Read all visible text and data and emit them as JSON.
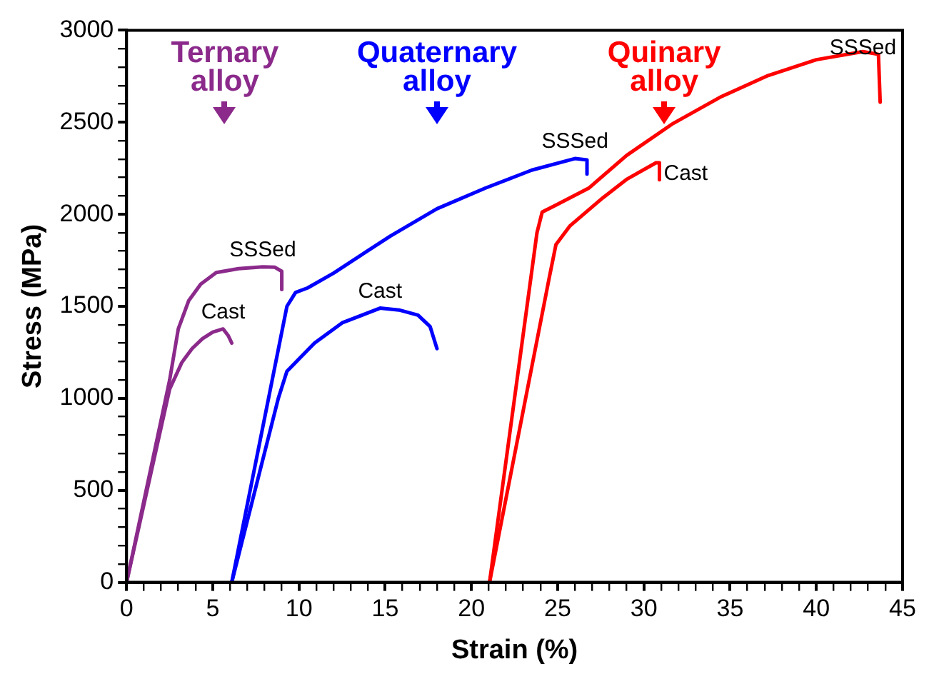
{
  "chart_data": {
    "type": "line",
    "xlabel": "Strain (%)",
    "ylabel": "Stress (MPa)",
    "xlim": [
      0,
      45
    ],
    "ylim": [
      0,
      3000
    ],
    "xticks": [
      0,
      {
        "value": 1,
        "label": null
      },
      {
        "value": 2,
        "label": null
      },
      {
        "value": 3,
        "label": null
      },
      {
        "value": 4,
        "label": null
      },
      5,
      {
        "value": 6,
        "label": null
      },
      {
        "value": 7,
        "label": null
      },
      {
        "value": 8,
        "label": null
      },
      {
        "value": 9,
        "label": null
      },
      10,
      {
        "value": 11,
        "label": null
      },
      {
        "value": 12,
        "label": null
      },
      {
        "value": 13,
        "label": null
      },
      {
        "value": 14,
        "label": null
      },
      15,
      {
        "value": 16,
        "label": null
      },
      {
        "value": 17,
        "label": null
      },
      {
        "value": 18,
        "label": null
      },
      {
        "value": 19,
        "label": null
      },
      20,
      {
        "value": 21,
        "label": null
      },
      {
        "value": 22,
        "label": null
      },
      {
        "value": 23,
        "label": null
      },
      {
        "value": 24,
        "label": null
      },
      25,
      {
        "value": 26,
        "label": null
      },
      {
        "value": 27,
        "label": null
      },
      {
        "value": 28,
        "label": null
      },
      {
        "value": 29,
        "label": null
      },
      30,
      {
        "value": 31,
        "label": null
      },
      {
        "value": 32,
        "label": null
      },
      {
        "value": 33,
        "label": null
      },
      {
        "value": 34,
        "label": null
      },
      35,
      {
        "value": 36,
        "label": null
      },
      {
        "value": 37,
        "label": null
      },
      {
        "value": 38,
        "label": null
      },
      {
        "value": 39,
        "label": null
      },
      40,
      {
        "value": 41,
        "label": null
      },
      {
        "value": 42,
        "label": null
      },
      {
        "value": 43,
        "label": null
      },
      {
        "value": 44,
        "label": null
      },
      45
    ],
    "yticks": [
      0,
      {
        "value": 100,
        "label": null
      },
      {
        "value": 200,
        "label": null
      },
      {
        "value": 300,
        "label": null
      },
      {
        "value": 400,
        "label": null
      },
      500,
      {
        "value": 600,
        "label": null
      },
      {
        "value": 700,
        "label": null
      },
      {
        "value": 800,
        "label": null
      },
      {
        "value": 900,
        "label": null
      },
      1000,
      {
        "value": 1100,
        "label": null
      },
      {
        "value": 1200,
        "label": null
      },
      {
        "value": 1300,
        "label": null
      },
      {
        "value": 1400,
        "label": null
      },
      1500,
      {
        "value": 1600,
        "label": null
      },
      {
        "value": 1700,
        "label": null
      },
      {
        "value": 1800,
        "label": null
      },
      {
        "value": 1900,
        "label": null
      },
      2000,
      {
        "value": 2100,
        "label": null
      },
      {
        "value": 2200,
        "label": null
      },
      {
        "value": 2300,
        "label": null
      },
      {
        "value": 2400,
        "label": null
      },
      2500,
      {
        "value": 2600,
        "label": null
      },
      {
        "value": 2700,
        "label": null
      },
      {
        "value": 2800,
        "label": null
      },
      {
        "value": 2900,
        "label": null
      },
      3000
    ],
    "grid": false,
    "legend": false,
    "marker": "none",
    "line_style": "solid",
    "series": [
      {
        "name": "SSSed",
        "color": "#8b2a8b",
        "x": [
          0,
          2.5,
          3.0,
          3.6,
          4.3,
          5.2,
          6.5,
          7.9,
          8.6,
          9.0,
          9.0
        ],
        "values": [
          0,
          1100,
          1377,
          1530,
          1620,
          1683,
          1705,
          1714,
          1712,
          1690,
          1591
        ]
      },
      {
        "name": "Cast",
        "color": "#8b2a8b",
        "x": [
          0,
          2.5,
          3.2,
          3.8,
          4.4,
          5.0,
          5.6,
          5.9,
          6.1
        ],
        "values": [
          0,
          1050,
          1194,
          1270,
          1324,
          1360,
          1377,
          1340,
          1300
        ]
      },
      {
        "name": "SSSed",
        "color": "#0000ff",
        "x": [
          6.1,
          9.3,
          9.8,
          10.5,
          12.0,
          15.3,
          18.0,
          20.8,
          23.5,
          26.0,
          26.7,
          26.7
        ],
        "values": [
          0,
          1500,
          1575,
          1600,
          1680,
          1882,
          2030,
          2142,
          2240,
          2303,
          2295,
          2219
        ]
      },
      {
        "name": "Cast",
        "color": "#0000ff",
        "x": [
          6.1,
          8.8,
          9.3,
          10.9,
          12.5,
          14.7,
          15.8,
          16.9,
          17.6,
          18.0
        ],
        "values": [
          0,
          1000,
          1147,
          1300,
          1410,
          1490,
          1480,
          1452,
          1390,
          1270
        ]
      },
      {
        "name": "SSSed",
        "color": "#ff0000",
        "x": [
          21.05,
          23.8,
          24.1,
          24.9,
          26.8,
          29.0,
          31.7,
          34.5,
          37.2,
          40.0,
          42.7,
          43.6,
          43.7
        ],
        "values": [
          0,
          1900,
          2012,
          2050,
          2142,
          2320,
          2494,
          2640,
          2754,
          2840,
          2884,
          2869,
          2609
        ]
      },
      {
        "name": "Cast",
        "color": "#ff0000",
        "x": [
          21.05,
          24.5,
          24.9,
          25.7,
          27.6,
          29.0,
          30.7,
          30.9,
          30.9
        ],
        "values": [
          0,
          1650,
          1836,
          1936,
          2088,
          2190,
          2280,
          2280,
          2188
        ]
      }
    ],
    "annotations": [
      "Ternary alloy",
      "Quaternary alloy",
      "Quinary alloy"
    ]
  }
}
